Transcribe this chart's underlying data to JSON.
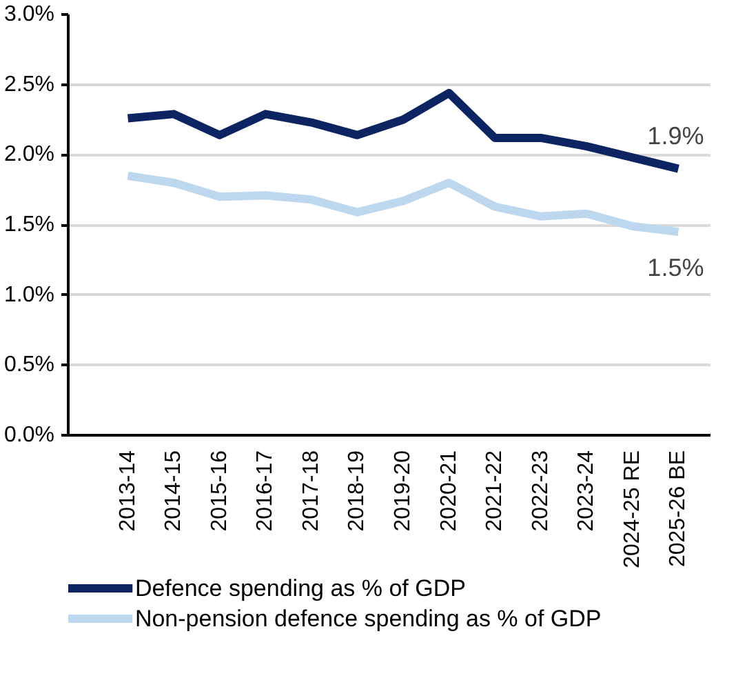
{
  "chart_data": {
    "type": "line",
    "categories": [
      "2013-14",
      "2014-15",
      "2015-16",
      "2016-17",
      "2017-18",
      "2018-19",
      "2019-20",
      "2020-21",
      "2021-22",
      "2022-23",
      "2023-24",
      "2024-25 RE",
      "2025-26 BE"
    ],
    "series": [
      {
        "name": "Defence spending as % of GDP",
        "color": "#0c2461",
        "values": [
          2.26,
          2.29,
          2.14,
          2.29,
          2.23,
          2.14,
          2.25,
          2.44,
          2.12,
          2.12,
          2.06,
          1.98,
          1.9
        ]
      },
      {
        "name": "Non-pension defence spending as % of GDP",
        "color": "#bdd7ee",
        "values": [
          1.85,
          1.8,
          1.7,
          1.71,
          1.68,
          1.59,
          1.67,
          1.8,
          1.63,
          1.56,
          1.58,
          1.49,
          1.45
        ]
      }
    ],
    "ylim": [
      0,
      3
    ],
    "yticks": [
      {
        "value": 0,
        "label": "0.0%"
      },
      {
        "value": 0.5,
        "label": "0.5%"
      },
      {
        "value": 1,
        "label": "1.0%"
      },
      {
        "value": 1.5,
        "label": "1.5%"
      },
      {
        "value": 2,
        "label": "2.0%"
      },
      {
        "value": 2.5,
        "label": "2.5%"
      },
      {
        "value": 3,
        "label": "3.0%"
      }
    ],
    "grid": "y",
    "legend": "bottom",
    "marker": "none",
    "line_style": "solid",
    "annotations": [
      {
        "text": "1.9%",
        "x": "2025-26 BE",
        "y": 1.9
      },
      {
        "text": "1.5%",
        "x": "2025-26 BE",
        "y": 1.45
      }
    ]
  }
}
